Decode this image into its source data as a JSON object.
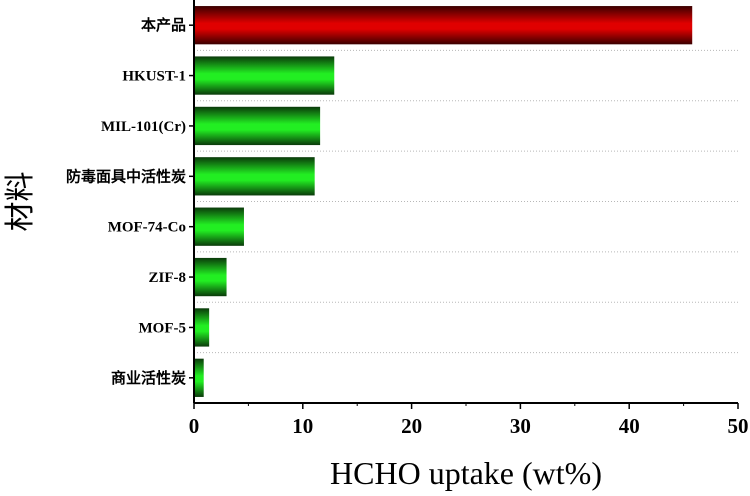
{
  "chart_data": {
    "type": "bar",
    "orientation": "horizontal",
    "categories": [
      "本产品",
      "HKUST-1",
      "MIL-101(Cr)",
      "防毒面具中活性炭",
      "MOF-74-Co",
      "ZIF-8",
      "MOF-5",
      "商业活性炭"
    ],
    "values": [
      45.7,
      12.8,
      11.5,
      11.0,
      4.5,
      2.9,
      1.3,
      0.8
    ],
    "xlabel": "HCHO uptake (wt%)",
    "ylabel": "材料",
    "xlim": [
      0,
      50
    ],
    "xticks": [
      "0",
      "10",
      "20",
      "30",
      "40",
      "50"
    ],
    "grid": "horizontal dotted",
    "colors": {
      "highlight": "#e00000",
      "highlight_dark": "#3a0000",
      "bar": "#22ee22",
      "bar_dark": "#0a3a0a"
    },
    "highlight_index": 0
  }
}
